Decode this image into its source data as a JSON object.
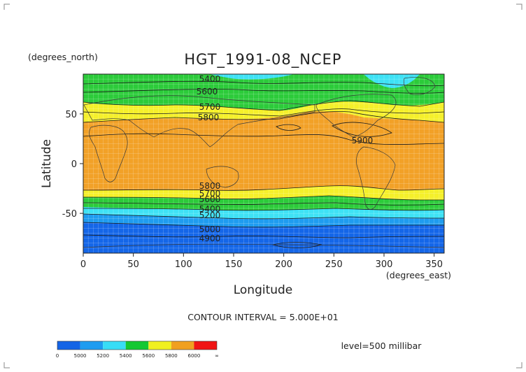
{
  "figure": {
    "title": "HGT_1991-08_NCEP",
    "y_units": "(degrees_north)",
    "x_units": "(degrees_east)",
    "xlabel": "Longitude",
    "ylabel": "Latitude",
    "contour_interval": "CONTOUR INTERVAL = 5.000E+01",
    "level": "level=500 millibar"
  },
  "chart_data": {
    "type": "heatmap",
    "title": "HGT_1991-08_NCEP",
    "xlabel": "Longitude",
    "ylabel": "Latitude",
    "xlim": [
      0,
      360
    ],
    "ylim": [
      -90,
      90
    ],
    "x_ticks": [
      "0",
      "50",
      "100",
      "150",
      "200",
      "250",
      "300",
      "350"
    ],
    "y_ticks": [
      "50",
      "0",
      "-50"
    ],
    "contour_labels": [
      "5400",
      "5600",
      "5700",
      "5800",
      "5900",
      "5800",
      "5700",
      "5600",
      "5400",
      "5200",
      "5000",
      "4900"
    ],
    "colorbar": {
      "labels": [
        "0",
        "5000",
        "5200",
        "5400",
        "5600",
        "5800",
        "6000",
        "∞"
      ],
      "colors": [
        "#1464e6",
        "#1e9cf0",
        "#38ddf6",
        "#14c832",
        "#f0f020",
        "#f0a020",
        "#f01414"
      ]
    },
    "bands": [
      {
        "value_range": "5800-6000",
        "color": "#f2a127"
      },
      {
        "value_range": "5600-5800",
        "color": "#f5f02a"
      },
      {
        "value_range": "5400-5600",
        "color": "#2ccb3a"
      },
      {
        "value_range": "5200-5400",
        "color": "#3ee2f5"
      },
      {
        "value_range": "5000-5200",
        "color": "#1e9cf0"
      },
      {
        "value_range": "0-5000",
        "color": "#1466e8"
      }
    ]
  }
}
